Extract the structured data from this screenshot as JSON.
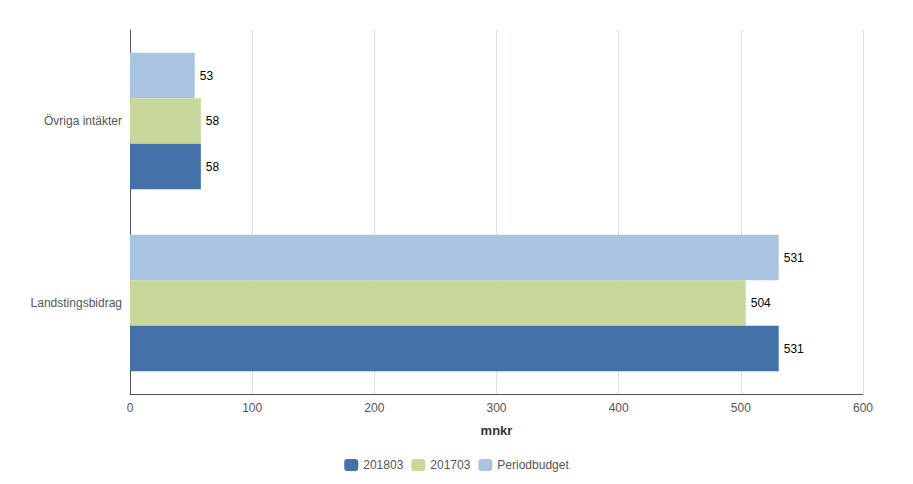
{
  "chart_data": {
    "type": "bar",
    "orientation": "horizontal",
    "categories": [
      "Landstingsbidrag",
      "Övriga intäkter"
    ],
    "series": [
      {
        "name": "201803",
        "color": "#4472a8",
        "values": [
          531,
          58
        ]
      },
      {
        "name": "201703",
        "color": "#c8d89a",
        "values": [
          504,
          58
        ]
      },
      {
        "name": "Periodbudget",
        "color": "#a8c4e0",
        "values": [
          531,
          53
        ]
      }
    ],
    "xlabel": "mnkr",
    "xlim": [
      0,
      600
    ],
    "xticks": [
      0,
      100,
      200,
      300,
      400,
      500,
      600
    ],
    "grid": true,
    "legend": "bottom",
    "data_labels": true
  }
}
